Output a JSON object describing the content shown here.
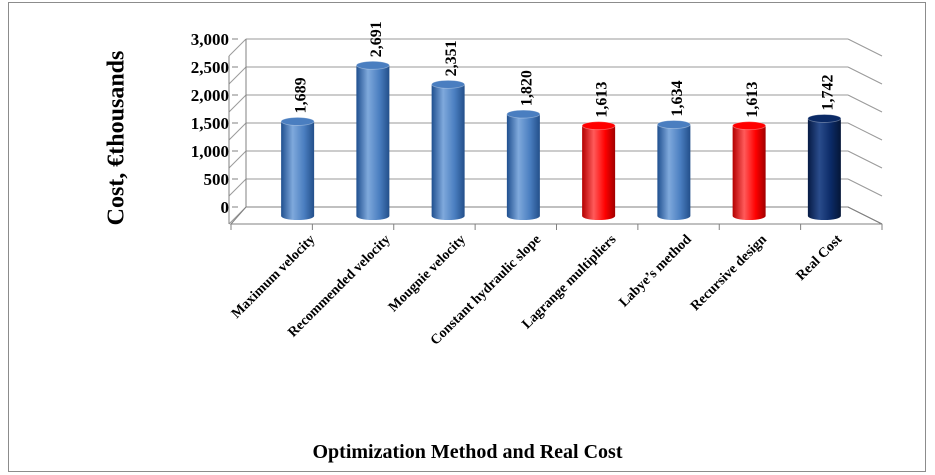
{
  "chart_data": {
    "type": "bar",
    "categories": [
      "Maximum velocity",
      "Recommended velocity",
      "Mougnie velocity",
      "Constant hydraulic slope",
      "Lagrange multipliers",
      "Labye’s method",
      "Recursive design",
      "Real Cost"
    ],
    "values": [
      1689,
      2691,
      2351,
      1820,
      1613,
      1634,
      1613,
      1742
    ],
    "value_labels": [
      "1,689",
      "2,691",
      "2,351",
      "1,820",
      "1,613",
      "1,634",
      "1,613",
      "1,742"
    ],
    "bar_colors": [
      "#4a7ec0",
      "#4a7ec0",
      "#4a7ec0",
      "#4a7ec0",
      "#ff0000",
      "#4a7ec0",
      "#ff0000",
      "#0b2a66"
    ],
    "ylabel": "Cost, €thousands",
    "xlabel": "Optimization Method and Real Cost",
    "yticks": [
      0,
      500,
      1000,
      1500,
      2000,
      2500,
      3000
    ],
    "ytick_labels": [
      "0",
      "500",
      "1,000",
      "1,500",
      "2,000",
      "2,500",
      "3,000"
    ],
    "ylim": [
      0,
      3000
    ],
    "grid": true,
    "style": "3d-cylinder"
  }
}
